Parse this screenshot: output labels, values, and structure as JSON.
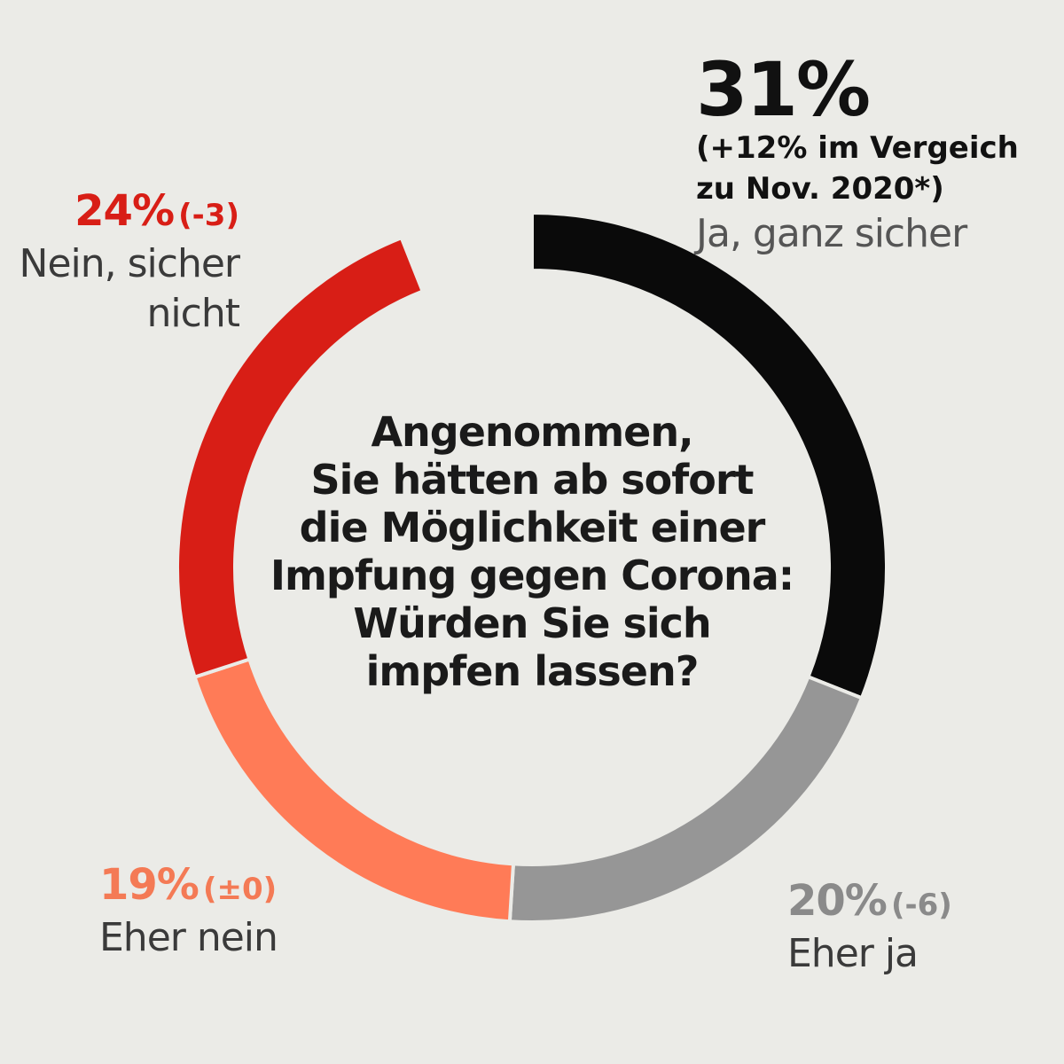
{
  "chart_data": {
    "type": "pie",
    "question": "Angenommen,\nSie hätten ab sofort\ndie Möglichkeit einer\nImpfung gegen Corona:\nWürden Sie sich\nimpfen lassen?",
    "slices": [
      {
        "key": "ja_sicher",
        "percent_label": "31%",
        "value": 31,
        "change": null,
        "note": "(+12% im Vergeich\nzu Nov. 2020*)",
        "category": "Ja, ganz sicher",
        "color": "#0a0a0a",
        "label_color": "#111111"
      },
      {
        "key": "eher_ja",
        "percent_label": "20%",
        "value": 20,
        "change": "(-6)",
        "category": "Eher ja",
        "color": "#969696",
        "label_color": "#8a8a8a"
      },
      {
        "key": "eher_nein",
        "percent_label": "19%",
        "value": 19,
        "change": "(±0)",
        "category": "Eher nein",
        "color": "#ff7b57",
        "label_color": "#f47a55"
      },
      {
        "key": "nein_sicher",
        "percent_label": "24%",
        "value": 24,
        "change": "(-3)",
        "category": "Nein, sicher\nnicht",
        "color": "#d81e16",
        "label_color": "#d81e16"
      }
    ],
    "unlabeled_gap_percent": 6
  }
}
